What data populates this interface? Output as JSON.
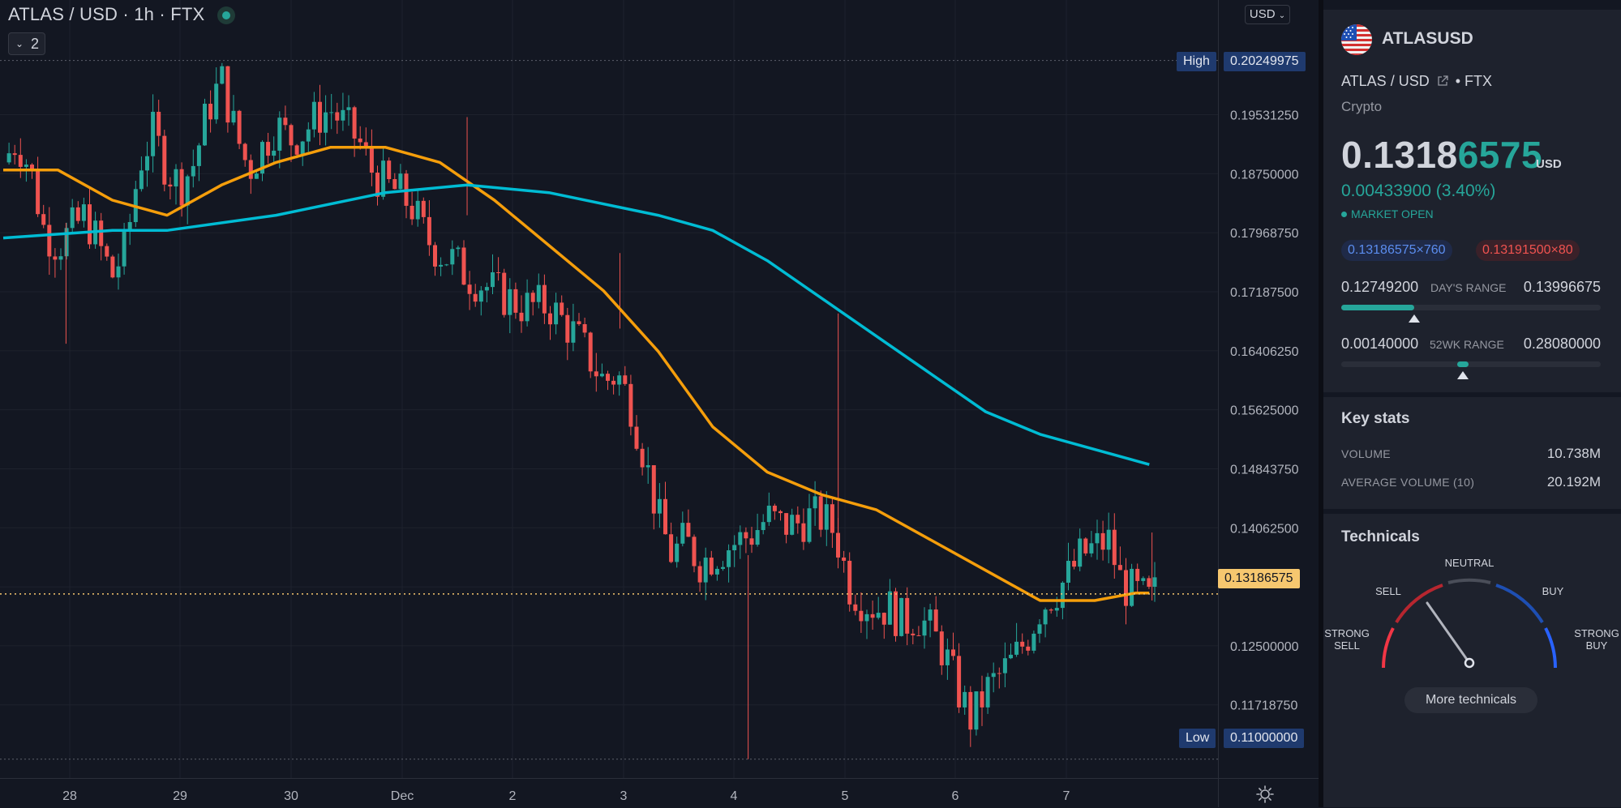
{
  "chart_header": {
    "title": "ATLAS / USD · 1h · FTX",
    "collapse_count": "2",
    "currency": "USD"
  },
  "price_scale": {
    "labels": [
      "0.19531250",
      "0.18750000",
      "0.17968750",
      "0.17187500",
      "0.16406250",
      "0.15625000",
      "0.14843750",
      "0.14062500",
      "0.12500000",
      "0.11718750"
    ],
    "high_label": "High",
    "high_value": "0.20249975",
    "low_label": "Low",
    "low_value": "0.11000000",
    "current_value": "0.13186575"
  },
  "time_axis": {
    "labels": [
      "28",
      "29",
      "30",
      "Dec",
      "2",
      "3",
      "4",
      "5",
      "6",
      "7"
    ]
  },
  "chart_data": {
    "type": "candlestick",
    "symbol": "ATLAS / USD",
    "interval": "1h",
    "exchange": "FTX",
    "y_range": [
      0.1075,
      0.2105
    ],
    "high": 0.20249975,
    "low": 0.11,
    "last": 0.13186575,
    "x_ticks": [
      "28",
      "29",
      "30",
      "Dec",
      "2",
      "3",
      "4",
      "5",
      "6",
      "7"
    ],
    "y_ticks": [
      0.1953125,
      0.1875,
      0.1796875,
      0.171875,
      0.1640625,
      0.15625,
      0.1484375,
      0.140625,
      0.125,
      0.1171875
    ],
    "close_path": [
      [
        0.0,
        0.189
      ],
      [
        0.5,
        0.192
      ],
      [
        1.0,
        0.188
      ],
      [
        1.5,
        0.18
      ],
      [
        2.0,
        0.178
      ],
      [
        2.5,
        0.18
      ],
      [
        3.0,
        0.182
      ],
      [
        3.5,
        0.178
      ],
      [
        4.0,
        0.174
      ],
      [
        4.5,
        0.178
      ],
      [
        5.0,
        0.189
      ],
      [
        5.5,
        0.193
      ],
      [
        6.0,
        0.188
      ],
      [
        6.5,
        0.186
      ],
      [
        7.0,
        0.189
      ],
      [
        7.5,
        0.196
      ],
      [
        8.0,
        0.2
      ],
      [
        8.5,
        0.193
      ],
      [
        9.0,
        0.188
      ],
      [
        9.5,
        0.191
      ],
      [
        10.0,
        0.194
      ],
      [
        10.5,
        0.192
      ],
      [
        11.0,
        0.193
      ],
      [
        11.5,
        0.195
      ],
      [
        12.0,
        0.196
      ],
      [
        12.5,
        0.194
      ],
      [
        13.0,
        0.192
      ],
      [
        13.5,
        0.188
      ],
      [
        14.0,
        0.186
      ],
      [
        14.5,
        0.185
      ],
      [
        15.0,
        0.183
      ],
      [
        15.5,
        0.179
      ],
      [
        16.0,
        0.177
      ],
      [
        16.5,
        0.176
      ],
      [
        17.0,
        0.174
      ],
      [
        17.5,
        0.173
      ],
      [
        18.0,
        0.172
      ],
      [
        18.5,
        0.171
      ],
      [
        19.0,
        0.17
      ],
      [
        19.5,
        0.17
      ],
      [
        20.0,
        0.17
      ],
      [
        20.5,
        0.168
      ],
      [
        21.0,
        0.166
      ],
      [
        21.5,
        0.163
      ],
      [
        22.0,
        0.16
      ],
      [
        22.5,
        0.161
      ],
      [
        23.0,
        0.157
      ],
      [
        23.5,
        0.15
      ],
      [
        24.0,
        0.142
      ],
      [
        24.5,
        0.137
      ],
      [
        25.0,
        0.139
      ],
      [
        25.5,
        0.136
      ],
      [
        26.0,
        0.137
      ],
      [
        26.5,
        0.138
      ],
      [
        27.0,
        0.139
      ],
      [
        27.5,
        0.14
      ],
      [
        28.0,
        0.142
      ],
      [
        28.5,
        0.141
      ],
      [
        29.0,
        0.141
      ],
      [
        29.5,
        0.142
      ],
      [
        30.0,
        0.142
      ],
      [
        30.5,
        0.14
      ],
      [
        31.0,
        0.133
      ],
      [
        31.5,
        0.131
      ],
      [
        32.0,
        0.13
      ],
      [
        32.5,
        0.13
      ],
      [
        33.0,
        0.128
      ],
      [
        33.5,
        0.129
      ],
      [
        34.0,
        0.127
      ],
      [
        34.5,
        0.124
      ],
      [
        35.0,
        0.119
      ],
      [
        35.5,
        0.115
      ],
      [
        36.0,
        0.119
      ],
      [
        36.5,
        0.121
      ],
      [
        37.0,
        0.123
      ],
      [
        37.5,
        0.126
      ],
      [
        38.0,
        0.13
      ],
      [
        38.5,
        0.132
      ],
      [
        39.0,
        0.134
      ],
      [
        39.5,
        0.137
      ],
      [
        40.0,
        0.138
      ],
      [
        40.5,
        0.139
      ],
      [
        41.0,
        0.133
      ],
      [
        41.5,
        0.132
      ],
      [
        42.0,
        0.131
      ],
      [
        42.2,
        0.132
      ]
    ],
    "wick_spikes": [
      {
        "x": 2.3,
        "high": 0.181,
        "low": 0.165
      },
      {
        "x": 17.0,
        "high": 0.195,
        "low": 0.182
      },
      {
        "x": 22.6,
        "high": 0.177,
        "low": 0.167
      },
      {
        "x": 27.3,
        "high": 0.137,
        "low": 0.11
      },
      {
        "x": 30.6,
        "high": 0.169,
        "low": 0.14
      },
      {
        "x": 42.1,
        "high": 0.14,
        "low": 0.131
      }
    ],
    "series": [
      {
        "type": "line",
        "color": "#f59e0b",
        "values": [
          [
            0.0,
            0.188
          ],
          [
            2.0,
            0.188
          ],
          [
            4.0,
            0.184
          ],
          [
            6.0,
            0.182
          ],
          [
            8.0,
            0.186
          ],
          [
            10.0,
            0.189
          ],
          [
            12.0,
            0.191
          ],
          [
            14.0,
            0.191
          ],
          [
            16.0,
            0.189
          ],
          [
            18.0,
            0.184
          ],
          [
            20.0,
            0.178
          ],
          [
            22.0,
            0.172
          ],
          [
            24.0,
            0.164
          ],
          [
            26.0,
            0.154
          ],
          [
            28.0,
            0.148
          ],
          [
            30.0,
            0.145
          ],
          [
            32.0,
            0.143
          ],
          [
            34.0,
            0.139
          ],
          [
            36.0,
            0.135
          ],
          [
            38.0,
            0.131
          ],
          [
            40.0,
            0.131
          ],
          [
            41.5,
            0.132
          ],
          [
            42.0,
            0.132
          ]
        ]
      },
      {
        "type": "line",
        "color": "#00bcd4",
        "values": [
          [
            0.0,
            0.179
          ],
          [
            4.0,
            0.18
          ],
          [
            6.0,
            0.18
          ],
          [
            10.0,
            0.182
          ],
          [
            14.0,
            0.185
          ],
          [
            17.0,
            0.186
          ],
          [
            20.0,
            0.185
          ],
          [
            24.0,
            0.182
          ],
          [
            26.0,
            0.18
          ],
          [
            28.0,
            0.176
          ],
          [
            30.0,
            0.171
          ],
          [
            32.0,
            0.166
          ],
          [
            34.0,
            0.161
          ],
          [
            36.0,
            0.156
          ],
          [
            38.0,
            0.153
          ],
          [
            40.0,
            0.151
          ],
          [
            42.0,
            0.149
          ]
        ]
      }
    ]
  },
  "sidebar": {
    "symbol": "ATLASUSD",
    "subtitle_pair": "ATLAS / USD",
    "subtitle_exchange": "• FTX",
    "type": "Crypto",
    "price_main": "0.1318",
    "price_highlight": "6575",
    "price_unit": "USD",
    "change": "0.00433900 (3.40%)",
    "market_status": "MARKET OPEN",
    "bid": "0.13186575×760",
    "ask": "0.13191500×80",
    "days_range": {
      "low": "0.12749200",
      "label": "DAY'S RANGE",
      "high": "0.13996675",
      "fill_fraction": 0.28
    },
    "wk52_range": {
      "low": "0.00140000",
      "label": "52WK RANGE",
      "high": "0.28080000",
      "fill_fraction": 0.47
    },
    "key_stats_title": "Key stats",
    "stats": [
      {
        "label": "VOLUME",
        "value": "10.738M"
      },
      {
        "label": "AVERAGE VOLUME (10)",
        "value": "20.192M"
      }
    ],
    "technicals_title": "Technicals",
    "gauge": {
      "strong_sell": "STRONG\nSELL",
      "sell": "SELL",
      "neutral": "NEUTRAL",
      "buy": "BUY",
      "strong_buy": "STRONG\nBUY",
      "needle_reading": "sell"
    },
    "more_button": "More technicals",
    "colors": {
      "up": "#26a69a",
      "down": "#ef5350",
      "ma_fast": "#f59e0b",
      "ma_slow": "#00bcd4",
      "accent_blue": "#2962ff"
    }
  }
}
